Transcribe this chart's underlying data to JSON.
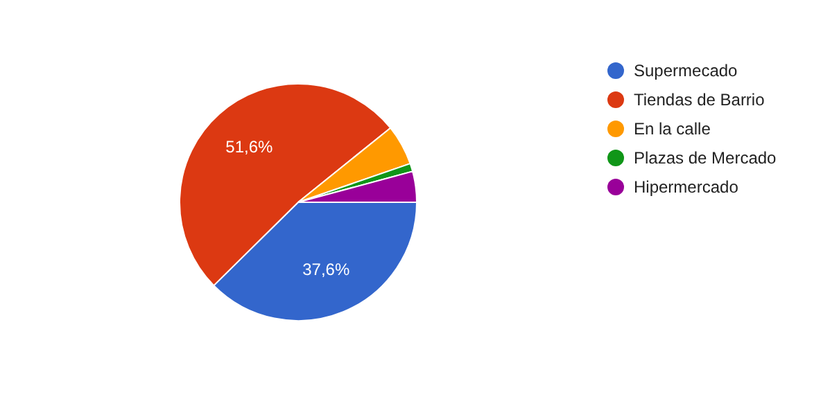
{
  "chart_data": {
    "type": "pie",
    "categories": [
      "Supermecado",
      "Tiendas de Barrio",
      "En la calle",
      "Plazas de Mercado",
      "Hipermercado"
    ],
    "values": [
      37.6,
      51.6,
      5.5,
      1.1,
      4.2
    ],
    "colors": [
      "#3366cc",
      "#dc3912",
      "#ff9900",
      "#109618",
      "#990099"
    ],
    "value_labels": [
      "37,6%",
      "51,6%",
      null,
      null,
      null
    ],
    "legend": "right"
  }
}
